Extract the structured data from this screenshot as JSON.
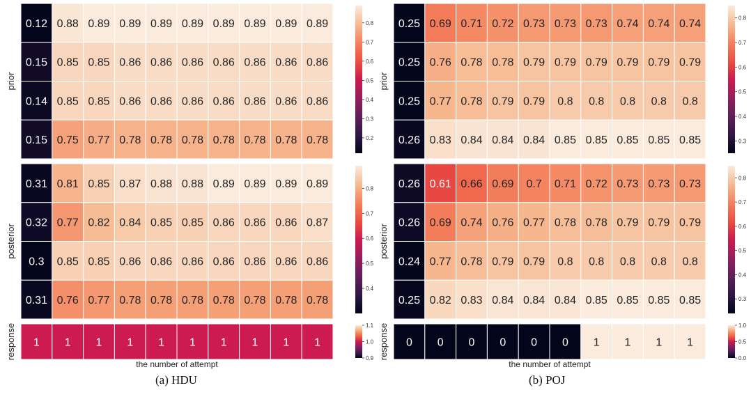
{
  "figure": {
    "subfigures": [
      {
        "caption": "(a) HDU"
      },
      {
        "caption": "(b) POJ"
      }
    ]
  },
  "chart_data": [
    {
      "type": "heatmap",
      "panel": "HDU",
      "ylabel": "prior",
      "values": [
        [
          0.12,
          0.88,
          0.89,
          0.89,
          0.89,
          0.89,
          0.89,
          0.89,
          0.89,
          0.89
        ],
        [
          0.15,
          0.85,
          0.85,
          0.86,
          0.86,
          0.86,
          0.86,
          0.86,
          0.86,
          0.86
        ],
        [
          0.14,
          0.85,
          0.85,
          0.86,
          0.86,
          0.86,
          0.86,
          0.86,
          0.86,
          0.86
        ],
        [
          0.15,
          0.75,
          0.77,
          0.78,
          0.78,
          0.78,
          0.78,
          0.78,
          0.78,
          0.78
        ]
      ],
      "colorbar": {
        "min": 0.12,
        "max": 0.89,
        "ticks": [
          "0.2",
          "0.3",
          "0.4",
          "0.5",
          "0.6",
          "0.7",
          "0.8"
        ]
      }
    },
    {
      "type": "heatmap",
      "panel": "HDU",
      "ylabel": "posterior",
      "values": [
        [
          0.31,
          0.81,
          0.85,
          0.87,
          0.88,
          0.88,
          0.89,
          0.89,
          0.89,
          0.89
        ],
        [
          0.32,
          0.77,
          0.82,
          0.84,
          0.85,
          0.85,
          0.86,
          0.86,
          0.86,
          0.87
        ],
        [
          0.3,
          0.85,
          0.85,
          0.86,
          0.86,
          0.86,
          0.86,
          0.86,
          0.86,
          0.86
        ],
        [
          0.31,
          0.76,
          0.77,
          0.78,
          0.78,
          0.78,
          0.78,
          0.78,
          0.78,
          0.78
        ]
      ],
      "colorbar": {
        "min": 0.3,
        "max": 0.89,
        "ticks": [
          "0.4",
          "0.5",
          "0.6",
          "0.7",
          "0.8"
        ]
      }
    },
    {
      "type": "heatmap",
      "panel": "HDU",
      "ylabel": "response",
      "xlabel": "the number of attempt",
      "values": [
        [
          1,
          1,
          1,
          1,
          1,
          1,
          1,
          1,
          1,
          1
        ]
      ],
      "colorbar": {
        "min": 0.9,
        "max": 1.1,
        "ticks": [
          "0.9",
          "1.0",
          "1.1"
        ]
      }
    },
    {
      "type": "heatmap",
      "panel": "POJ",
      "ylabel": "prior",
      "values": [
        [
          0.25,
          0.69,
          0.71,
          0.72,
          0.73,
          0.73,
          0.73,
          0.74,
          0.74,
          0.74
        ],
        [
          0.25,
          0.76,
          0.78,
          0.78,
          0.79,
          0.79,
          0.79,
          0.79,
          0.79,
          0.79
        ],
        [
          0.25,
          0.77,
          0.78,
          0.79,
          0.79,
          0.8,
          0.8,
          0.8,
          0.8,
          0.8
        ],
        [
          0.26,
          0.83,
          0.84,
          0.84,
          0.84,
          0.85,
          0.85,
          0.85,
          0.85,
          0.85
        ]
      ],
      "colorbar": {
        "min": 0.25,
        "max": 0.85,
        "ticks": [
          "0.3",
          "0.4",
          "0.5",
          "0.6",
          "0.7",
          "0.8"
        ]
      }
    },
    {
      "type": "heatmap",
      "panel": "POJ",
      "ylabel": "posterior",
      "values": [
        [
          0.26,
          0.61,
          0.66,
          0.69,
          0.7,
          0.71,
          0.72,
          0.73,
          0.73,
          0.73
        ],
        [
          0.26,
          0.69,
          0.74,
          0.76,
          0.77,
          0.78,
          0.78,
          0.79,
          0.79,
          0.79
        ],
        [
          0.24,
          0.77,
          0.78,
          0.79,
          0.79,
          0.8,
          0.8,
          0.8,
          0.8,
          0.8
        ],
        [
          0.25,
          0.82,
          0.83,
          0.84,
          0.84,
          0.84,
          0.85,
          0.85,
          0.85,
          0.85
        ]
      ],
      "colorbar": {
        "min": 0.24,
        "max": 0.85,
        "ticks": [
          "0.3",
          "0.4",
          "0.5",
          "0.6",
          "0.7",
          "0.8"
        ]
      }
    },
    {
      "type": "heatmap",
      "panel": "POJ",
      "ylabel": "response",
      "xlabel": "the number of attempt",
      "values": [
        [
          0,
          0,
          0,
          0,
          0,
          0,
          1,
          1,
          1,
          1
        ]
      ],
      "colorbar": {
        "min": 0.0,
        "max": 1.0,
        "ticks": [
          "0.0",
          "0.5",
          "1.0"
        ]
      }
    }
  ]
}
